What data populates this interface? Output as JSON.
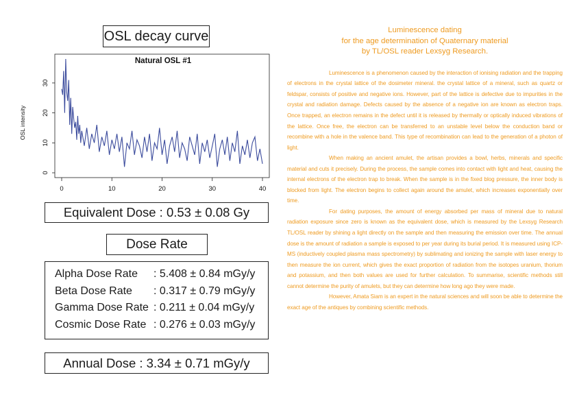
{
  "chart_box": {
    "title": "OSL decay curve"
  },
  "chart_data": {
    "type": "line",
    "title": "Natural OSL #1",
    "xlabel": "",
    "ylabel": "OSL intensity",
    "xlim": [
      0,
      40
    ],
    "ylim": [
      0,
      38
    ],
    "x_ticks": [
      0,
      10,
      20,
      30,
      40
    ],
    "y_ticks": [
      0,
      10,
      20,
      30
    ],
    "grid": false,
    "series_color": "#3a4a9c",
    "series": [
      {
        "x": [
          0,
          0.2,
          0.4,
          0.6,
          0.8,
          1,
          1.2,
          1.4,
          1.6,
          1.8,
          2,
          2.2,
          2.4,
          2.6,
          2.8,
          3,
          3.2,
          3.4,
          3.6,
          3.8,
          4,
          4.5,
          5,
          5.5,
          6,
          6.5,
          7,
          7.5,
          8,
          8.5,
          9,
          9.5,
          10,
          10.5,
          11,
          11.5,
          12,
          12.5,
          13,
          13.5,
          14,
          14.5,
          15,
          15.5,
          16,
          16.5,
          17,
          17.5,
          18,
          18.5,
          19,
          19.5,
          20,
          20.5,
          21,
          21.5,
          22,
          22.5,
          23,
          23.5,
          24,
          24.5,
          25,
          25.5,
          26,
          26.5,
          27,
          27.5,
          28,
          28.5,
          29,
          29.5,
          30,
          30.5,
          31,
          31.5,
          32,
          32.5,
          33,
          33.5,
          34,
          34.5,
          35,
          35.5,
          36,
          36.5,
          37,
          37.5,
          38,
          38.5,
          39,
          39.5,
          40
        ],
        "y": [
          28,
          26,
          34,
          20,
          38,
          27,
          24,
          31,
          16,
          25,
          13,
          22,
          18,
          15,
          17,
          11,
          19,
          13,
          16,
          10,
          14,
          9,
          15,
          8,
          13,
          10,
          16,
          7,
          12,
          9,
          14,
          6,
          11,
          8,
          13,
          7,
          12,
          2,
          10,
          8,
          14,
          6,
          11,
          9,
          5,
          12,
          7,
          13,
          4,
          10,
          8,
          15,
          6,
          11,
          3,
          9,
          12,
          7,
          14,
          5,
          10,
          8,
          4,
          12,
          9,
          6,
          13,
          3,
          10,
          7,
          11,
          5,
          9,
          13,
          2,
          8,
          11,
          6,
          12,
          4,
          10,
          7,
          14,
          3,
          9,
          6,
          11,
          5,
          10,
          12,
          4,
          8,
          3
        ]
      }
    ]
  },
  "equivalent_dose": {
    "label": "Equivalent Dose : 0.53 ±  0.08 Gy"
  },
  "dose_rate": {
    "title": "Dose Rate",
    "rows": [
      {
        "label": "Alpha Dose Rate",
        "value": ": 5.408 ±  0.84 mGy/y"
      },
      {
        "label": "Beta Dose Rate",
        "value": ": 0.317 ±  0.79 mGy/y"
      },
      {
        "label": "Gamma Dose Rate",
        "value": ": 0.211 ±  0.04 mGy/y"
      },
      {
        "label": "Cosmic Dose Rate",
        "value": ": 0.276 ± 0.03 mGy/y"
      }
    ]
  },
  "annual_dose": {
    "label": "Annual Dose : 3.34 ±  0.71 mGy/y"
  },
  "article": {
    "title_lines": [
      "Luminescence dating",
      "for the age determination of Quaternary material",
      "by TL/OSL reader Lexsyg Research."
    ],
    "paragraphs": [
      "Luminescence is a phenomenon caused by the interaction of ionising radiation and the trapping of electrons in the crystal lattice of the dosimeter mineral. the crystal lattice of a mineral, such as quartz or feldspar, consists of positive and negative ions. However, part of the lattice is defective due to impurities in the crystal and radiation damage. Defects caused by the absence of a negative ion are known as electron traps. Once trapped, an electron remains in the defect until it is released by thermally or optically induced vibrations of the lattice. Once free, the electron can be transferred to an unstable level below the conduction band or recombine with a hole in the valence band. This type of recombination can lead to the generation of a photon of light.",
      "When making an ancient amulet, the artisan provides a bowl, herbs, minerals and specific material and cuts it precisely. During the process, the sample comes into contact with light and heat, causing the internal electrons of the electron trap to break. When the sample is in the fixed blog pressure, the inner body is blocked from light. The electron begins to collect again around the amulet, which increases exponentially over time.",
      "For dating purposes, the amount of energy absorbed per mass of mineral due to natural radiation exposure since zero is known as the equivalent dose, which is measured by the Lexsyg Research TL/OSL reader by shining a light directly on the sample and then measuring the emission over time. The annual dose is the amount of radiation a sample is exposed to per year during its burial period. It is measured using ICP-MS (inductively coupled plasma mass spectrometry) by sublimating and ionizing the sample with laser energy to then measure the ion current, which gives the exact proportion of radiation from the isotopes uranium, thorium and potassium, and then both values are used for further calculation. To summarise, scientific methods still cannot determine the purity of amulets, but they can determine how long ago they were made.",
      "However, Amata Siam is an expert in the natural sciences and will soon be able to determine the exact age of the antiques by combining scientific methods."
    ]
  }
}
